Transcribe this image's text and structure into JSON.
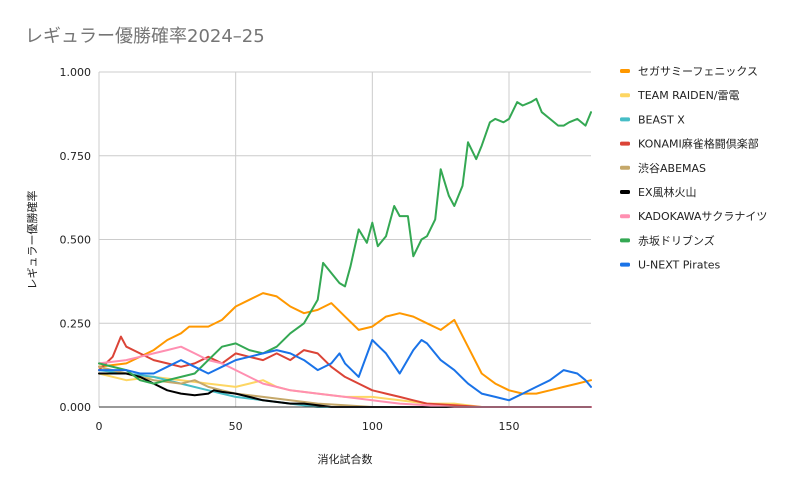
{
  "chart_data": {
    "type": "line",
    "title": "レギュラー優勝確率2024–25",
    "xlabel": "消化試合数",
    "ylabel": "レギュラー優勝確率",
    "xlim": [
      0,
      180
    ],
    "ylim": [
      0,
      1
    ],
    "x_ticks": [
      "0",
      "50",
      "100",
      "150"
    ],
    "x_tick_values": [
      0,
      50,
      100,
      150
    ],
    "y_ticks": [
      "0.000",
      "0.250",
      "0.500",
      "0.750",
      "1.000"
    ],
    "y_tick_values": [
      0,
      0.25,
      0.5,
      0.75,
      1.0
    ],
    "grid": true,
    "legend_position": "right",
    "series": [
      {
        "name": "セガサミーフェニックス",
        "color": "#ff9800",
        "points": [
          [
            0,
            0.12
          ],
          [
            10,
            0.13
          ],
          [
            20,
            0.17
          ],
          [
            25,
            0.2
          ],
          [
            30,
            0.22
          ],
          [
            33,
            0.24
          ],
          [
            40,
            0.24
          ],
          [
            45,
            0.26
          ],
          [
            50,
            0.3
          ],
          [
            55,
            0.32
          ],
          [
            60,
            0.34
          ],
          [
            65,
            0.33
          ],
          [
            70,
            0.3
          ],
          [
            75,
            0.28
          ],
          [
            80,
            0.29
          ],
          [
            85,
            0.31
          ],
          [
            90,
            0.27
          ],
          [
            95,
            0.23
          ],
          [
            100,
            0.24
          ],
          [
            105,
            0.27
          ],
          [
            110,
            0.28
          ],
          [
            115,
            0.27
          ],
          [
            120,
            0.25
          ],
          [
            125,
            0.23
          ],
          [
            130,
            0.26
          ],
          [
            135,
            0.18
          ],
          [
            140,
            0.1
          ],
          [
            145,
            0.07
          ],
          [
            150,
            0.05
          ],
          [
            155,
            0.04
          ],
          [
            160,
            0.04
          ],
          [
            165,
            0.05
          ],
          [
            170,
            0.06
          ],
          [
            175,
            0.07
          ],
          [
            180,
            0.08
          ]
        ]
      },
      {
        "name": "TEAM RAIDEN/雷電",
        "color": "#fdd663",
        "points": [
          [
            0,
            0.1
          ],
          [
            10,
            0.08
          ],
          [
            20,
            0.09
          ],
          [
            30,
            0.08
          ],
          [
            40,
            0.07
          ],
          [
            50,
            0.06
          ],
          [
            55,
            0.07
          ],
          [
            60,
            0.08
          ],
          [
            65,
            0.06
          ],
          [
            70,
            0.05
          ],
          [
            80,
            0.04
          ],
          [
            90,
            0.03
          ],
          [
            100,
            0.03
          ],
          [
            110,
            0.02
          ],
          [
            120,
            0.01
          ],
          [
            130,
            0.01
          ],
          [
            140,
            0.0
          ],
          [
            150,
            0.0
          ],
          [
            160,
            0.0
          ],
          [
            170,
            0.0
          ],
          [
            180,
            0.0
          ]
        ]
      },
      {
        "name": "BEAST X",
        "color": "#46bdc6",
        "points": [
          [
            0,
            0.11
          ],
          [
            10,
            0.1
          ],
          [
            20,
            0.09
          ],
          [
            30,
            0.07
          ],
          [
            40,
            0.05
          ],
          [
            45,
            0.04
          ],
          [
            50,
            0.03
          ],
          [
            60,
            0.02
          ],
          [
            70,
            0.01
          ],
          [
            80,
            0.0
          ],
          [
            90,
            0.0
          ],
          [
            100,
            0.0
          ],
          [
            120,
            0.0
          ],
          [
            140,
            0.0
          ],
          [
            160,
            0.0
          ],
          [
            180,
            0.0
          ]
        ]
      },
      {
        "name": "KONAMI麻雀格闘倶楽部",
        "color": "#db4437",
        "points": [
          [
            0,
            0.11
          ],
          [
            5,
            0.15
          ],
          [
            8,
            0.21
          ],
          [
            10,
            0.18
          ],
          [
            15,
            0.16
          ],
          [
            20,
            0.14
          ],
          [
            25,
            0.13
          ],
          [
            30,
            0.12
          ],
          [
            35,
            0.13
          ],
          [
            40,
            0.15
          ],
          [
            45,
            0.13
          ],
          [
            50,
            0.16
          ],
          [
            55,
            0.15
          ],
          [
            60,
            0.14
          ],
          [
            65,
            0.16
          ],
          [
            70,
            0.14
          ],
          [
            75,
            0.17
          ],
          [
            80,
            0.16
          ],
          [
            85,
            0.12
          ],
          [
            90,
            0.09
          ],
          [
            95,
            0.07
          ],
          [
            100,
            0.05
          ],
          [
            105,
            0.04
          ],
          [
            110,
            0.03
          ],
          [
            115,
            0.02
          ],
          [
            120,
            0.01
          ],
          [
            130,
            0.005
          ],
          [
            140,
            0.0
          ],
          [
            150,
            0.0
          ],
          [
            160,
            0.0
          ],
          [
            170,
            0.0
          ],
          [
            180,
            0.0
          ]
        ]
      },
      {
        "name": "渋谷ABEMAS",
        "color": "#c5a86a",
        "points": [
          [
            0,
            0.12
          ],
          [
            10,
            0.1
          ],
          [
            20,
            0.08
          ],
          [
            30,
            0.07
          ],
          [
            35,
            0.08
          ],
          [
            40,
            0.06
          ],
          [
            45,
            0.05
          ],
          [
            50,
            0.04
          ],
          [
            60,
            0.03
          ],
          [
            70,
            0.02
          ],
          [
            80,
            0.01
          ],
          [
            90,
            0.005
          ],
          [
            100,
            0.0
          ],
          [
            120,
            0.0
          ],
          [
            140,
            0.0
          ],
          [
            160,
            0.0
          ],
          [
            180,
            0.0
          ]
        ]
      },
      {
        "name": "EX風林火山",
        "color": "#000000",
        "points": [
          [
            0,
            0.1
          ],
          [
            10,
            0.1
          ],
          [
            15,
            0.09
          ],
          [
            20,
            0.07
          ],
          [
            25,
            0.05
          ],
          [
            30,
            0.04
          ],
          [
            35,
            0.035
          ],
          [
            40,
            0.04
          ],
          [
            42,
            0.05
          ],
          [
            45,
            0.045
          ],
          [
            50,
            0.04
          ],
          [
            55,
            0.03
          ],
          [
            60,
            0.02
          ],
          [
            70,
            0.01
          ],
          [
            75,
            0.01
          ],
          [
            80,
            0.005
          ],
          [
            85,
            0.0
          ],
          [
            90,
            0.0
          ],
          [
            100,
            0.0
          ],
          [
            120,
            0.0
          ],
          [
            140,
            0.0
          ],
          [
            160,
            0.0
          ],
          [
            180,
            0.0
          ]
        ]
      },
      {
        "name": "KADOKAWAサクラナイツ",
        "color": "#ff8fb1",
        "points": [
          [
            0,
            0.13
          ],
          [
            10,
            0.14
          ],
          [
            15,
            0.15
          ],
          [
            20,
            0.16
          ],
          [
            25,
            0.17
          ],
          [
            30,
            0.18
          ],
          [
            35,
            0.16
          ],
          [
            40,
            0.14
          ],
          [
            45,
            0.13
          ],
          [
            50,
            0.11
          ],
          [
            55,
            0.09
          ],
          [
            60,
            0.07
          ],
          [
            65,
            0.06
          ],
          [
            70,
            0.05
          ],
          [
            80,
            0.04
          ],
          [
            90,
            0.03
          ],
          [
            100,
            0.02
          ],
          [
            110,
            0.01
          ],
          [
            120,
            0.005
          ],
          [
            130,
            0.0
          ],
          [
            140,
            0.0
          ],
          [
            160,
            0.0
          ],
          [
            180,
            0.0
          ]
        ]
      },
      {
        "name": "赤坂ドリブンズ",
        "color": "#34a853",
        "points": [
          [
            0,
            0.13
          ],
          [
            10,
            0.11
          ],
          [
            15,
            0.08
          ],
          [
            20,
            0.07
          ],
          [
            25,
            0.08
          ],
          [
            30,
            0.09
          ],
          [
            35,
            0.1
          ],
          [
            40,
            0.14
          ],
          [
            45,
            0.18
          ],
          [
            50,
            0.19
          ],
          [
            55,
            0.17
          ],
          [
            60,
            0.16
          ],
          [
            65,
            0.18
          ],
          [
            70,
            0.22
          ],
          [
            75,
            0.25
          ],
          [
            80,
            0.32
          ],
          [
            82,
            0.43
          ],
          [
            85,
            0.4
          ],
          [
            88,
            0.37
          ],
          [
            90,
            0.36
          ],
          [
            92,
            0.42
          ],
          [
            95,
            0.53
          ],
          [
            98,
            0.49
          ],
          [
            100,
            0.55
          ],
          [
            102,
            0.48
          ],
          [
            105,
            0.51
          ],
          [
            108,
            0.6
          ],
          [
            110,
            0.57
          ],
          [
            113,
            0.57
          ],
          [
            115,
            0.45
          ],
          [
            118,
            0.5
          ],
          [
            120,
            0.51
          ],
          [
            123,
            0.56
          ],
          [
            125,
            0.71
          ],
          [
            128,
            0.63
          ],
          [
            130,
            0.6
          ],
          [
            133,
            0.66
          ],
          [
            135,
            0.79
          ],
          [
            138,
            0.74
          ],
          [
            140,
            0.78
          ],
          [
            143,
            0.85
          ],
          [
            145,
            0.86
          ],
          [
            148,
            0.85
          ],
          [
            150,
            0.86
          ],
          [
            153,
            0.91
          ],
          [
            155,
            0.9
          ],
          [
            158,
            0.91
          ],
          [
            160,
            0.92
          ],
          [
            162,
            0.88
          ],
          [
            165,
            0.86
          ],
          [
            168,
            0.84
          ],
          [
            170,
            0.84
          ],
          [
            172,
            0.85
          ],
          [
            175,
            0.86
          ],
          [
            178,
            0.84
          ],
          [
            180,
            0.88
          ]
        ]
      },
      {
        "name": "U-NEXT Pirates",
        "color": "#1a73e8",
        "points": [
          [
            0,
            0.11
          ],
          [
            10,
            0.11
          ],
          [
            15,
            0.1
          ],
          [
            20,
            0.1
          ],
          [
            25,
            0.12
          ],
          [
            30,
            0.14
          ],
          [
            35,
            0.12
          ],
          [
            40,
            0.1
          ],
          [
            45,
            0.12
          ],
          [
            50,
            0.14
          ],
          [
            55,
            0.15
          ],
          [
            60,
            0.16
          ],
          [
            65,
            0.17
          ],
          [
            70,
            0.16
          ],
          [
            75,
            0.14
          ],
          [
            80,
            0.11
          ],
          [
            85,
            0.13
          ],
          [
            88,
            0.16
          ],
          [
            90,
            0.13
          ],
          [
            95,
            0.09
          ],
          [
            100,
            0.2
          ],
          [
            105,
            0.16
          ],
          [
            110,
            0.1
          ],
          [
            115,
            0.17
          ],
          [
            118,
            0.2
          ],
          [
            120,
            0.19
          ],
          [
            125,
            0.14
          ],
          [
            130,
            0.11
          ],
          [
            135,
            0.07
          ],
          [
            140,
            0.04
          ],
          [
            145,
            0.03
          ],
          [
            150,
            0.02
          ],
          [
            155,
            0.04
          ],
          [
            160,
            0.06
          ],
          [
            165,
            0.08
          ],
          [
            170,
            0.11
          ],
          [
            175,
            0.1
          ],
          [
            178,
            0.08
          ],
          [
            180,
            0.06
          ]
        ]
      }
    ]
  }
}
